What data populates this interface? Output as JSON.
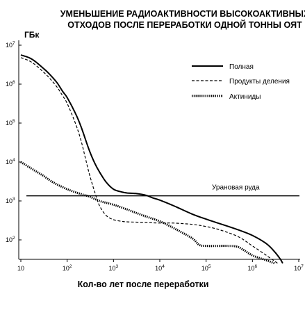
{
  "chart_data": {
    "type": "line",
    "title_lines": [
      "УМЕНЬШЕНИЕ РАДИОАКТИВНОСТИ ВЫСОКОАКТИВНЫХ",
      "ОТХОДОВ ПОСЛЕ ПЕРЕРАБОТКИ ОДНОЙ ТОННЫ ОЯТ"
    ],
    "ylabel": "ГБк",
    "xlabel": "Кол-во лет после переработки",
    "x_scale": "log",
    "y_scale": "log",
    "xlim": [
      10,
      10000000
    ],
    "ylim": [
      25,
      10000000
    ],
    "x_ticks": [
      {
        "base": "10",
        "exp": ""
      },
      {
        "base": "10",
        "exp": "2"
      },
      {
        "base": "10",
        "exp": "3"
      },
      {
        "base": "10",
        "exp": "4"
      },
      {
        "base": "10",
        "exp": "5"
      },
      {
        "base": "10",
        "exp": "6"
      },
      {
        "base": "10",
        "exp": "7"
      }
    ],
    "y_ticks": [
      {
        "base": "10",
        "exp": "2"
      },
      {
        "base": "10",
        "exp": "3"
      },
      {
        "base": "10",
        "exp": "4"
      },
      {
        "base": "10",
        "exp": "5"
      },
      {
        "base": "10",
        "exp": "6"
      },
      {
        "base": "10",
        "exp": "7"
      }
    ],
    "legend_position": "top-right",
    "series": [
      {
        "name": "Полная",
        "style": "solid",
        "x": [
          10,
          15,
          20,
          30,
          40,
          60,
          80,
          100,
          150,
          200,
          300,
          400,
          500,
          700,
          1000,
          1500,
          2000,
          3000,
          5000,
          7000,
          10000,
          20000,
          50000,
          100000,
          200000,
          500000,
          1000000,
          2000000,
          3000000,
          4000000,
          4500000
        ],
        "y": [
          5600000,
          4800000,
          3900000,
          2600000,
          1900000,
          1100000,
          650000,
          450000,
          180000,
          80000,
          20000,
          9000,
          5500,
          3000,
          2000,
          1700,
          1600,
          1550,
          1400,
          1200,
          1050,
          750,
          460,
          340,
          260,
          180,
          130,
          80,
          50,
          32,
          25
        ]
      },
      {
        "name": "Продукты деления",
        "style": "dashed",
        "x": [
          10,
          15,
          20,
          30,
          40,
          60,
          80,
          100,
          150,
          200,
          250,
          300,
          400,
          500,
          700,
          1000,
          1500,
          2000,
          5000,
          10000,
          20000,
          50000,
          100000,
          200000,
          500000,
          1000000,
          2000000,
          3500000
        ],
        "y": [
          4800000,
          4000000,
          3200000,
          2100000,
          1500000,
          850000,
          500000,
          320000,
          100000,
          35000,
          12000,
          5000,
          1600,
          750,
          420,
          330,
          300,
          290,
          280,
          270,
          270,
          250,
          220,
          180,
          120,
          70,
          40,
          25
        ]
      },
      {
        "name": "Актиниды",
        "style": "dotted",
        "x": [
          10,
          20,
          30,
          50,
          100,
          200,
          300,
          500,
          1000,
          2000,
          3000,
          5000,
          10000,
          20000,
          50000,
          70000,
          100000,
          200000,
          300000,
          500000,
          1000000,
          2000000,
          3000000
        ],
        "y": [
          10000,
          6000,
          4500,
          3000,
          2000,
          1500,
          1300,
          1000,
          800,
          600,
          500,
          400,
          300,
          200,
          110,
          75,
          70,
          70,
          70,
          65,
          40,
          30,
          25
        ]
      }
    ],
    "annotations": [
      {
        "text": "Урановая руда",
        "y": 1350,
        "style": "horizontal-line"
      }
    ]
  }
}
